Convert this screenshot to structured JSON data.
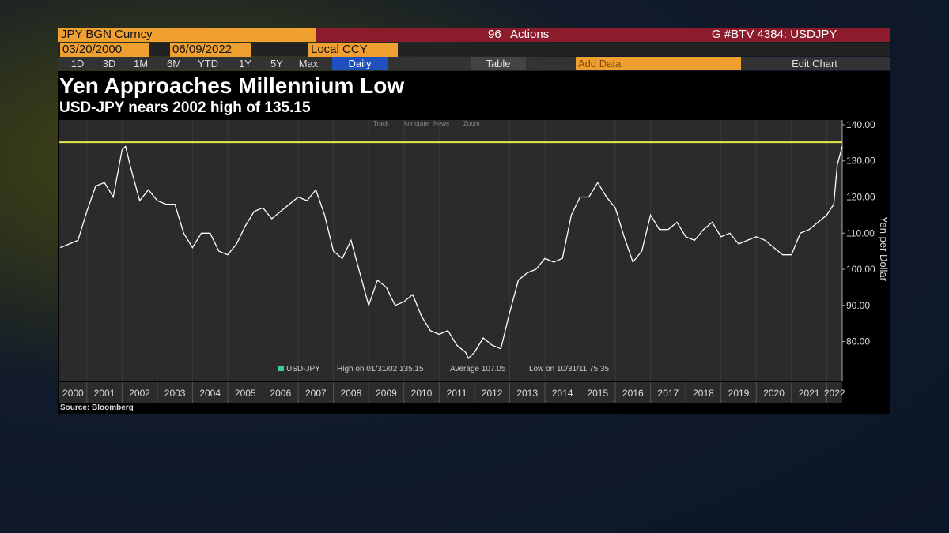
{
  "ui": {
    "security": "JPY BGN Curncy",
    "actions": "Actions",
    "actions_key": "96",
    "function": "G #BTV 4384: USDJPY",
    "start_date": "03/20/2000",
    "end_date": "06/09/2022",
    "currency": "Local CCY",
    "ranges": [
      "1D",
      "3D",
      "1M",
      "6M",
      "YTD",
      "1Y",
      "5Y",
      "Max"
    ],
    "period": "Daily",
    "table": "Table",
    "add_data": "Add Data",
    "edit_chart": "Edit Chart",
    "tools": [
      "Track",
      "Annotate",
      "News",
      "Zoom"
    ]
  },
  "chart_data": {
    "type": "line",
    "title": "Yen Approaches Millennium Low",
    "subtitle": "USD-JPY nears 2002 high of 135.15",
    "y_label": "Yen per Dollar",
    "source": "Source: Bloomberg",
    "x": [
      2000.25,
      2000.5,
      2000.75,
      2001.0,
      2001.25,
      2001.5,
      2001.75,
      2002.0,
      2002.1,
      2002.25,
      2002.5,
      2002.75,
      2003.0,
      2003.25,
      2003.5,
      2003.75,
      2004.0,
      2004.25,
      2004.5,
      2004.75,
      2005.0,
      2005.25,
      2005.5,
      2005.75,
      2006.0,
      2006.25,
      2006.5,
      2006.75,
      2007.0,
      2007.25,
      2007.5,
      2007.75,
      2008.0,
      2008.25,
      2008.5,
      2008.75,
      2009.0,
      2009.25,
      2009.5,
      2009.75,
      2010.0,
      2010.25,
      2010.5,
      2010.75,
      2011.0,
      2011.25,
      2011.5,
      2011.75,
      2011.83,
      2012.0,
      2012.25,
      2012.5,
      2012.75,
      2013.0,
      2013.25,
      2013.5,
      2013.75,
      2014.0,
      2014.25,
      2014.5,
      2014.75,
      2015.0,
      2015.25,
      2015.5,
      2015.75,
      2016.0,
      2016.25,
      2016.5,
      2016.75,
      2017.0,
      2017.25,
      2017.5,
      2017.75,
      2018.0,
      2018.25,
      2018.5,
      2018.75,
      2019.0,
      2019.25,
      2019.5,
      2019.75,
      2020.0,
      2020.25,
      2020.5,
      2020.75,
      2021.0,
      2021.25,
      2021.5,
      2021.75,
      2022.0,
      2022.2,
      2022.3,
      2022.44
    ],
    "series": [
      {
        "name": "USD-JPY",
        "color": "#ffffff",
        "values": [
          106,
          107,
          108,
          116,
          123,
          124,
          120,
          133,
          134,
          128,
          119,
          122,
          119,
          118,
          118,
          110,
          106,
          110,
          110,
          105,
          104,
          107,
          112,
          116,
          117,
          114,
          116,
          118,
          120,
          119,
          122,
          115,
          105,
          103,
          108,
          99,
          90,
          97,
          95,
          90,
          91,
          93,
          87,
          83,
          82,
          83,
          79,
          77,
          75.35,
          77,
          81,
          79,
          78,
          88,
          97,
          99,
          100,
          103,
          102,
          103,
          115,
          120,
          120,
          124,
          120,
          117,
          109,
          102,
          105,
          115,
          111,
          111,
          113,
          109,
          108,
          111,
          113,
          109,
          110,
          107,
          108,
          109,
          108,
          106,
          104,
          104,
          110,
          111,
          113,
          115,
          118,
          129,
          134
        ]
      }
    ],
    "reference_line": {
      "value": 135.15,
      "color": "#e6ea4a"
    },
    "legend_notes": [
      "High on 01/31/02 135.15",
      "Average 107.05",
      "Low on 10/31/11 75.35"
    ],
    "xlim": [
      2000.22,
      2022.44
    ],
    "xticks": [
      2000,
      2001,
      2002,
      2003,
      2004,
      2005,
      2006,
      2007,
      2008,
      2009,
      2010,
      2011,
      2012,
      2013,
      2014,
      2015,
      2016,
      2017,
      2018,
      2019,
      2020,
      2021,
      2022
    ],
    "ylim": [
      69.2,
      141.3
    ],
    "yticks": [
      {
        "value": 80,
        "label": "80.00"
      },
      {
        "value": 90,
        "label": "90.00"
      },
      {
        "value": 100,
        "label": "100.00"
      },
      {
        "value": 110,
        "label": "110.00"
      },
      {
        "value": 120,
        "label": "120.00"
      },
      {
        "value": 130,
        "label": "130.00"
      },
      {
        "value": 140,
        "label": "140.00"
      }
    ]
  }
}
